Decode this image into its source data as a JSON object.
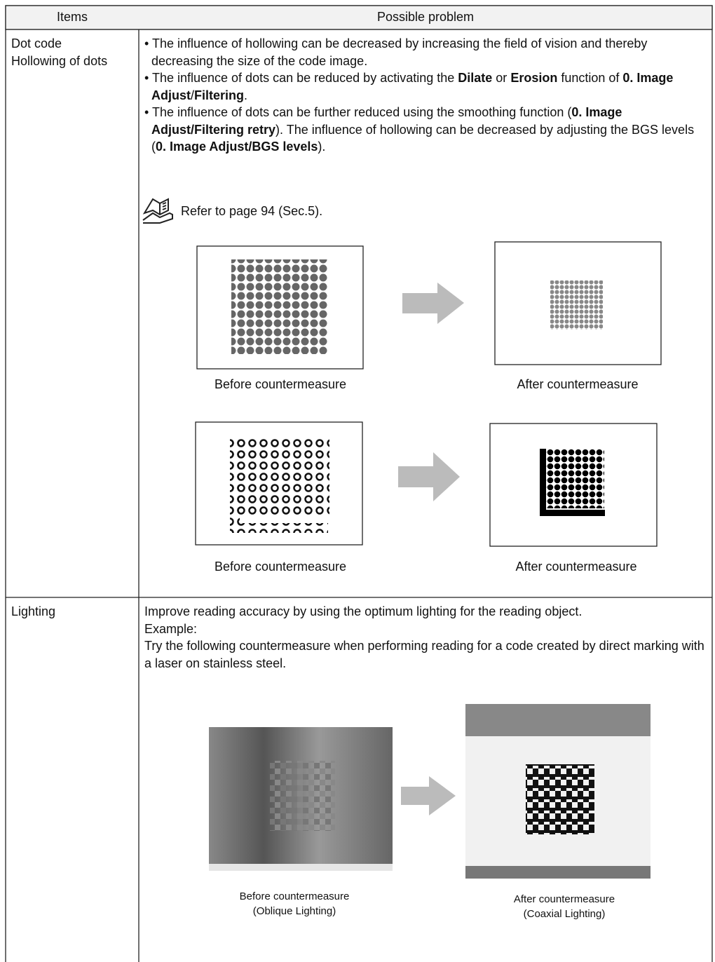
{
  "table": {
    "header": [
      "Items",
      "Possible problem"
    ],
    "rows": [
      {
        "items": [
          "Dot code",
          "Hollowing of dots"
        ],
        "bullets": [
          [
            {
              "text": "• The influence of hollowing can be decreased by increasing the field of vision and thereby decreasing the size of the code image."
            }
          ],
          [
            {
              "text": "• The influence of dots can be reduced by activating the "
            },
            {
              "text": "Dilate",
              "bold": true
            },
            {
              "text": " or "
            },
            {
              "text": "Erosion",
              "bold": true
            },
            {
              "text": " function of "
            },
            {
              "text": "0. Image Adjust",
              "bold": true
            },
            {
              "text": "/"
            },
            {
              "text": "Filtering",
              "bold": true
            },
            {
              "text": "."
            }
          ],
          [
            {
              "text": "• The influence of dots can be further reduced using the smoothing function ("
            },
            {
              "text": "0. Image Adjust/Filtering retry",
              "bold": true
            },
            {
              "text": "). The influence of hollowing can be decreased by adjusting the BGS levels ("
            },
            {
              "text": "0. Image Adjust/BGS levels",
              "bold": true
            },
            {
              "text": ")."
            }
          ]
        ],
        "reference": "Refer to page 94 (Sec.5).",
        "captions": [
          "Before countermeasure",
          "After countermeasure",
          "Before countermeasure",
          "After countermeasure"
        ]
      },
      {
        "items": [
          "Lighting"
        ],
        "paragraphs": [
          "Improve reading accuracy by using the optimum lighting for the reading object.",
          "Example:",
          "Try the following countermeasure when performing reading for a code created by direct marking with a laser on stainless steel."
        ],
        "captions": [
          [
            "Before countermeasure",
            "(Oblique Lighting)"
          ],
          [
            "After countermeasure",
            "(Coaxial Lighting)"
          ]
        ]
      }
    ]
  }
}
